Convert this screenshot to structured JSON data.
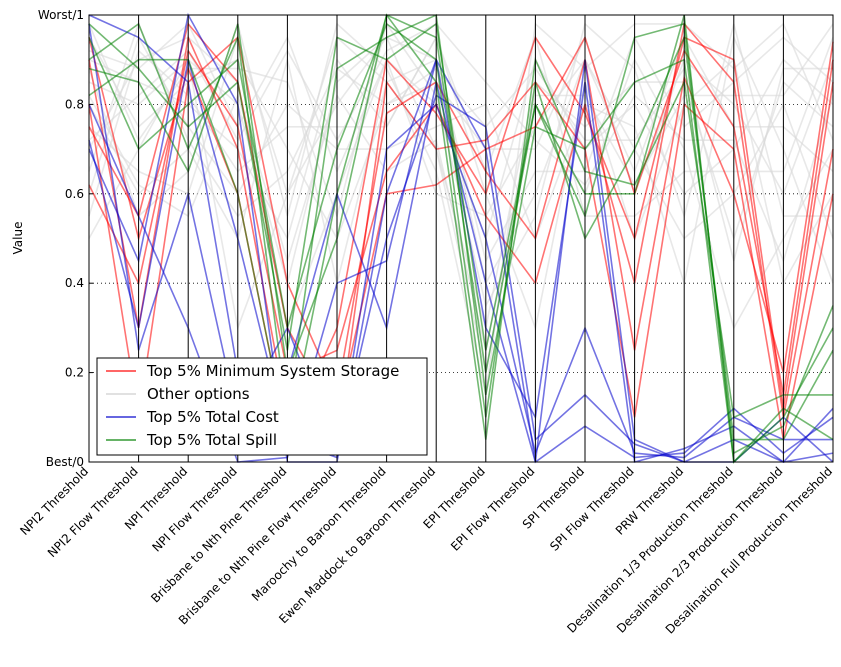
{
  "chart_data": {
    "type": "line",
    "subtype": "parallel-coordinates",
    "ylabel": "Value",
    "ylim": [
      0,
      1
    ],
    "y_ticks": [
      {
        "value": 0,
        "label": "Best/0"
      },
      {
        "value": 0.2,
        "label": "0.2"
      },
      {
        "value": 0.4,
        "label": "0.4"
      },
      {
        "value": 0.6,
        "label": "0.6"
      },
      {
        "value": 0.8,
        "label": "0.8"
      },
      {
        "value": 1,
        "label": "Worst/1"
      }
    ],
    "grid": "horizontal dotted",
    "legend_position": "bottom-left",
    "categories": [
      "NPI2 Threshold",
      "NPI2 Flow Threshold",
      "NPI Threshold",
      "NPI Flow Threshold",
      "Brisbane to Nth Pine Threshold",
      "Brisbane to Nth Pine Flow Threshold",
      "Maroochy to Baroon Threshold",
      "Ewen Maddock to Baroon Threshold",
      "EPI Threshold",
      "EPI Flow Threshold",
      "SPI Threshold",
      "SPI Flow Threshold",
      "PRW Threshold",
      "Desalination 1/3 Production Threshold",
      "Desalination 2/3 Production Threshold",
      "Desalination Full Production Threshold"
    ],
    "series": [
      {
        "name": "Top 5% Minimum System Storage",
        "color": "#ff0000",
        "lines": [
          [
            0.75,
            0.55,
            0.98,
            0.85,
            0.3,
            0.1,
            0.6,
            0.62,
            0.7,
            0.75,
            0.95,
            0.6,
            0.92,
            0.75,
            0.15,
            0.9
          ],
          [
            0.62,
            0.4,
            0.92,
            0.75,
            0.2,
            0.25,
            0.65,
            0.8,
            0.55,
            0.4,
            0.8,
            0.4,
            0.98,
            0.85,
            0.1,
            0.7
          ],
          [
            0.8,
            0.1,
            0.85,
            0.95,
            0.4,
            0.15,
            0.78,
            0.85,
            0.65,
            0.5,
            0.9,
            0.25,
            0.86,
            0.6,
            0.2,
            0.94
          ],
          [
            0.9,
            0.3,
            0.95,
            0.7,
            0.1,
            0.05,
            0.85,
            0.7,
            0.72,
            0.85,
            0.7,
            0.1,
            0.8,
            0.7,
            0.05,
            0.6
          ],
          [
            0.95,
            0.5,
            0.88,
            0.6,
            0.05,
            0.3,
            0.9,
            0.78,
            0.6,
            0.95,
            0.78,
            0.5,
            0.95,
            0.9,
            0.12,
            0.85
          ]
        ]
      },
      {
        "name": "Other options",
        "color": "#d9d9d9",
        "lines": [
          [
            0.5,
            0.7,
            0.9,
            0.3,
            0.6,
            0.8,
            0.95,
            0.9,
            0.4,
            0.6,
            0.9,
            0.7,
            0.5,
            0.6,
            0.8,
            0.5
          ],
          [
            0.8,
            0.6,
            0.7,
            0.5,
            0.9,
            0.4,
            0.85,
            0.7,
            0.2,
            0.8,
            0.6,
            0.9,
            0.7,
            0.3,
            0.5,
            0.7
          ],
          [
            0.9,
            0.85,
            0.8,
            0.7,
            0.5,
            0.9,
            0.75,
            0.95,
            0.6,
            0.3,
            0.85,
            0.5,
            0.8,
            0.9,
            0.4,
            0.6
          ],
          [
            0.7,
            0.9,
            0.95,
            0.85,
            0.3,
            0.6,
            0.9,
            0.8,
            0.5,
            0.9,
            0.7,
            0.8,
            0.6,
            0.7,
            0.9,
            0.8
          ],
          [
            0.95,
            0.75,
            0.85,
            0.9,
            0.7,
            0.5,
            0.8,
            0.85,
            0.7,
            0.7,
            0.95,
            0.6,
            0.9,
            0.8,
            0.6,
            0.9
          ],
          [
            0.6,
            0.95,
            0.75,
            0.6,
            0.8,
            0.7,
            0.7,
            0.75,
            0.8,
            0.5,
            0.8,
            0.75,
            0.4,
            0.95,
            0.7,
            0.4
          ],
          [
            0.85,
            0.8,
            0.9,
            0.8,
            0.4,
            0.85,
            0.95,
            0.7,
            0.3,
            0.85,
            0.75,
            0.85,
            0.85,
            0.5,
            0.85,
            0.75
          ],
          [
            0.75,
            0.65,
            0.6,
            0.95,
            0.6,
            0.95,
            0.85,
            0.9,
            0.45,
            0.65,
            0.65,
            0.95,
            0.75,
            0.85,
            0.95,
            0.85
          ],
          [
            0.92,
            0.88,
            0.98,
            0.75,
            0.95,
            0.65,
            0.9,
            0.6,
            0.55,
            0.75,
            0.9,
            0.65,
            0.95,
            0.75,
            0.75,
            0.65
          ],
          [
            0.55,
            0.92,
            0.82,
            0.65,
            0.75,
            0.75,
            0.75,
            0.95,
            0.65,
            0.95,
            0.55,
            0.55,
            0.65,
            0.65,
            0.65,
            0.95
          ],
          [
            0.98,
            0.72,
            0.88,
            0.88,
            0.85,
            0.55,
            0.98,
            0.82,
            0.35,
            0.55,
            0.98,
            0.88,
            0.55,
            0.98,
            0.55,
            0.55
          ],
          [
            0.65,
            0.98,
            0.72,
            0.55,
            0.65,
            0.88,
            0.8,
            0.88,
            0.75,
            0.88,
            0.72,
            0.72,
            0.88,
            0.45,
            0.88,
            0.88
          ],
          [
            0.88,
            0.55,
            0.65,
            0.98,
            0.55,
            0.98,
            0.88,
            0.65,
            0.15,
            0.98,
            0.88,
            0.98,
            0.98,
            0.88,
            0.98,
            0.72
          ],
          [
            0.72,
            0.82,
            0.92,
            0.72,
            0.92,
            0.72,
            0.92,
            0.98,
            0.85,
            0.72,
            0.62,
            0.82,
            0.72,
            0.72,
            0.45,
            0.82
          ],
          [
            0.82,
            0.62,
            0.55,
            0.82,
            0.45,
            0.82,
            0.65,
            0.72,
            0.25,
            0.82,
            0.82,
            0.62,
            0.82,
            0.82,
            0.82,
            0.98
          ]
        ]
      },
      {
        "name": "Top 5% Total Cost",
        "color": "#0000cc",
        "lines": [
          [
            0.7,
            0.45,
            1.0,
            0.8,
            0.0,
            0.0,
            0.6,
            0.9,
            0.7,
            0.0,
            0.9,
            0.05,
            0.0,
            0.05,
            0.0,
            0.02
          ],
          [
            0.72,
            0.3,
            0.9,
            0.5,
            0.05,
            0.01,
            0.7,
            0.8,
            0.5,
            0.02,
            0.3,
            0.02,
            0.01,
            0.1,
            0.05,
            0.05
          ],
          [
            1.0,
            0.95,
            0.85,
            0.2,
            0.2,
            0.6,
            0.3,
            0.85,
            0.4,
            0.0,
            0.08,
            0.01,
            0.02,
            0.12,
            0.02,
            0.1
          ],
          [
            0.98,
            0.25,
            0.6,
            0.1,
            0.3,
            0.02,
            0.5,
            0.82,
            0.75,
            0.05,
            0.15,
            0.04,
            0.0,
            0.0,
            0.1,
            0.0
          ],
          [
            0.8,
            0.55,
            0.3,
            0.0,
            0.01,
            0.4,
            0.45,
            0.9,
            0.3,
            0.1,
            0.85,
            0.0,
            0.03,
            0.08,
            0.0,
            0.12
          ]
        ]
      },
      {
        "name": "Top 5% Total Spill",
        "color": "#008000",
        "lines": [
          [
            0.88,
            0.85,
            0.65,
            0.98,
            0.2,
            0.5,
            1.0,
            0.95,
            0.2,
            0.8,
            0.6,
            0.6,
            1.0,
            0.0,
            0.1,
            0.3
          ],
          [
            0.95,
            0.7,
            0.8,
            0.9,
            0.3,
            0.7,
            0.98,
            0.9,
            0.1,
            0.85,
            0.5,
            0.7,
            0.95,
            0.05,
            0.05,
            0.25
          ],
          [
            0.9,
            0.98,
            0.7,
            0.95,
            0.1,
            0.88,
            0.95,
            1.0,
            0.15,
            0.75,
            0.7,
            0.85,
            0.9,
            0.0,
            0.12,
            0.05
          ],
          [
            0.82,
            0.9,
            0.9,
            0.6,
            0.05,
            0.6,
            1.0,
            0.85,
            0.05,
            0.9,
            0.65,
            0.62,
            0.85,
            0.1,
            0.15,
            0.15
          ],
          [
            0.98,
            0.88,
            0.75,
            0.85,
            0.25,
            0.95,
            0.9,
            0.98,
            0.25,
            0.8,
            0.55,
            0.95,
            0.98,
            0.02,
            0.08,
            0.35
          ]
        ]
      }
    ]
  }
}
